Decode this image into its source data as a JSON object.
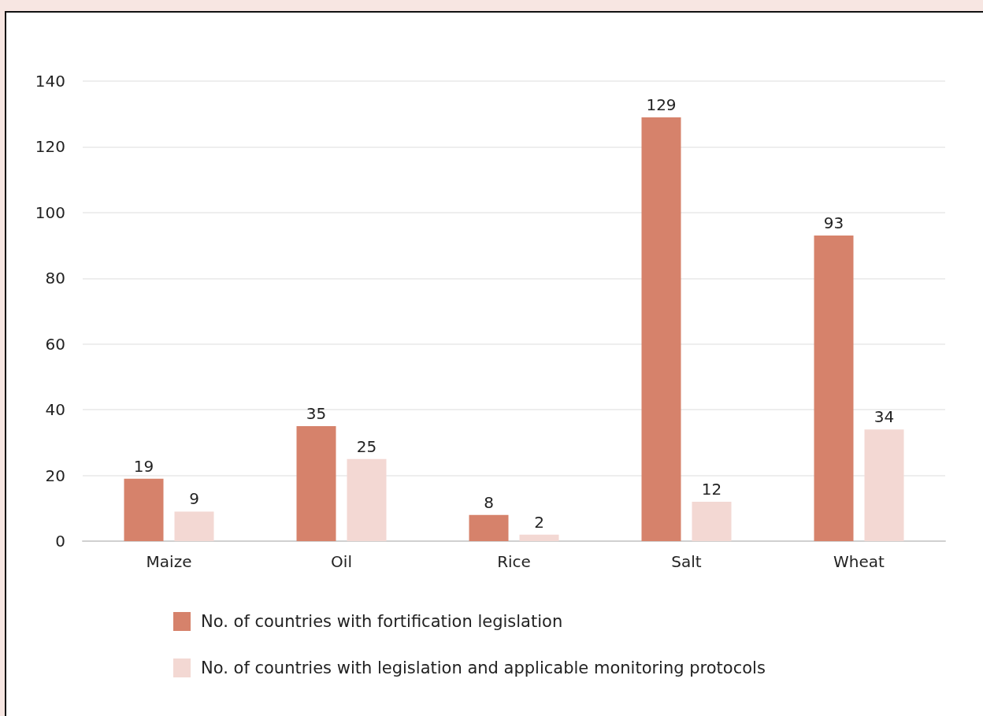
{
  "chart_data": {
    "type": "bar",
    "categories": [
      "Maize",
      "Oil",
      "Rice",
      "Salt",
      "Wheat"
    ],
    "series": [
      {
        "name": "No. of countries with fortification legislation",
        "color": "#d6826b",
        "values": [
          19,
          35,
          8,
          129,
          93
        ]
      },
      {
        "name": "No. of countries with legislation and applicable monitoring protocols",
        "color": "#f3d8d3",
        "values": [
          9,
          25,
          2,
          12,
          34
        ]
      }
    ],
    "ylim": [
      0,
      140
    ],
    "yticks": [
      0,
      20,
      40,
      60,
      80,
      100,
      120,
      140
    ],
    "grid": "y",
    "legend": "bottom",
    "data_labels": true
  }
}
